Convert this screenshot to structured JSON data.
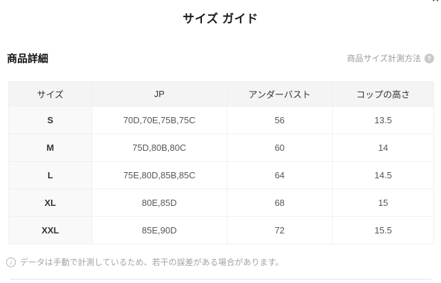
{
  "title": "サイズ ガイド",
  "icons": {
    "close": "✕",
    "help": "?",
    "info": "i"
  },
  "section": {
    "title": "商品詳細",
    "measure_link_label": "商品サイズ計測方法"
  },
  "table": {
    "headers": [
      "サイズ",
      "JP",
      "アンダーバスト",
      "コップの高さ"
    ],
    "rows": [
      {
        "size": "S",
        "jp": "70D,70E,75B,75C",
        "underbust": "56",
        "cup_height": "13.5"
      },
      {
        "size": "M",
        "jp": "75D,80B,80C",
        "underbust": "60",
        "cup_height": "14"
      },
      {
        "size": "L",
        "jp": "75E,80D,85B,85C",
        "underbust": "64",
        "cup_height": "14.5"
      },
      {
        "size": "XL",
        "jp": "80E,85D",
        "underbust": "68",
        "cup_height": "15"
      },
      {
        "size": "XXL",
        "jp": "85E,90D",
        "underbust": "72",
        "cup_height": "15.5"
      }
    ]
  },
  "note": "データは手動で計測しているため、若干の誤差がある場合があります。",
  "colors": {
    "header_bg": "#f4f4f5",
    "first_col_bg": "#f9f9fa",
    "border": "#e9e9ea",
    "muted_text": "#9a9a9a",
    "dark_text": "#1a1a1a"
  }
}
